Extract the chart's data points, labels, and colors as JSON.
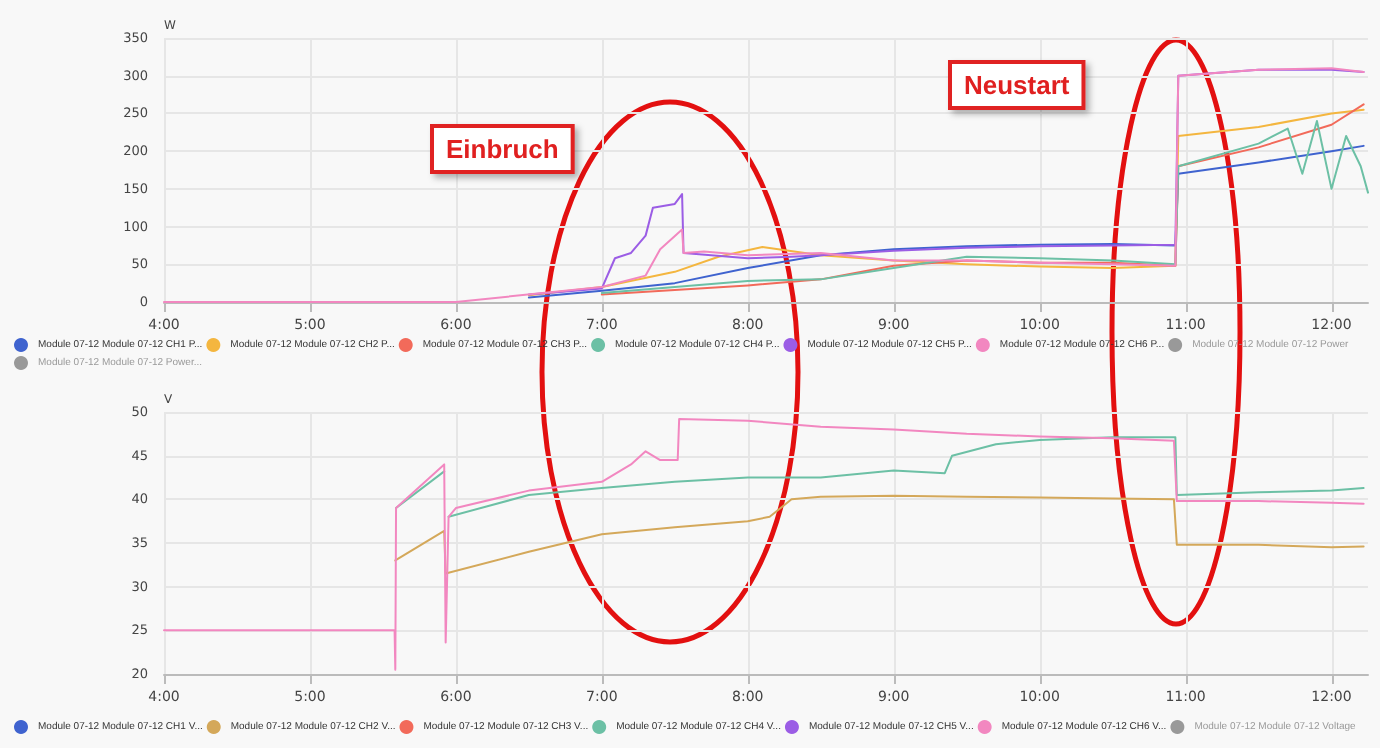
{
  "chart_data": [
    {
      "type": "line",
      "ylabel": "W",
      "annotations": [
        "Einbruch",
        "Neustart"
      ],
      "xlim": [
        4,
        12.25
      ],
      "xticks": [
        {
          "value": 4,
          "label": "4:00"
        },
        {
          "value": 5,
          "label": "5:00"
        },
        {
          "value": 6,
          "label": "6:00"
        },
        {
          "value": 7,
          "label": "7:00"
        },
        {
          "value": 8,
          "label": "8:00"
        },
        {
          "value": 9,
          "label": "9:00"
        },
        {
          "value": 10,
          "label": "10:00"
        },
        {
          "value": 11,
          "label": "11:00"
        },
        {
          "value": 12,
          "label": "12:00"
        }
      ],
      "ylim": [
        0,
        350
      ],
      "yticks": [
        0,
        50,
        100,
        150,
        200,
        250,
        300,
        350
      ],
      "grid": true,
      "legend": "bottom",
      "marker": "none",
      "line_style": "solid",
      "series": [
        {
          "name": "Module 07-12 Module 07-12 CH1 P...",
          "color": "#3f63cf",
          "x": [
            6.5,
            7,
            7.5,
            8,
            8.5,
            9,
            9.5,
            10,
            10.5,
            10.93,
            10.95,
            11.5,
            12,
            12.22
          ],
          "values": [
            6,
            15,
            25,
            45,
            62,
            70,
            74,
            76,
            77,
            75,
            170,
            185,
            200,
            207
          ]
        },
        {
          "name": "Module 07-12 Module 07-12 CH2 P...",
          "color": "#f4b63f",
          "x": [
            6.5,
            7,
            7.5,
            7.8,
            8.1,
            8.5,
            9,
            9.5,
            10,
            10.5,
            10.93,
            10.95,
            11.5,
            12,
            12.22
          ],
          "values": [
            9,
            20,
            40,
            60,
            73,
            62,
            55,
            50,
            47,
            45,
            48,
            220,
            232,
            250,
            255
          ]
        },
        {
          "name": "Module 07-12 Module 07-12 CH3 P...",
          "color": "#f26a5a",
          "x": [
            7,
            8,
            8.5,
            9,
            9.5,
            10,
            10.5,
            10.93,
            10.95,
            11.5,
            12,
            12.22
          ],
          "values": [
            10,
            22,
            30,
            48,
            55,
            52,
            52,
            48,
            180,
            205,
            235,
            262
          ]
        },
        {
          "name": "Module 07-12 Module 07-12 CH4 P...",
          "color": "#6cc0a5",
          "x": [
            7,
            8,
            8.5,
            9,
            9.5,
            10,
            10.5,
            10.93,
            10.95,
            11.5,
            11.7,
            11.8,
            11.9,
            12,
            12.1,
            12.2,
            12.25
          ],
          "values": [
            12,
            28,
            30,
            45,
            60,
            58,
            55,
            50,
            180,
            210,
            230,
            170,
            240,
            150,
            220,
            180,
            145
          ]
        },
        {
          "name": "Module 07-12 Module 07-12 CH5 P...",
          "color": "#9b5de5",
          "x": [
            6.5,
            7,
            7.09,
            7.2,
            7.3,
            7.35,
            7.5,
            7.55,
            7.56,
            8,
            8.3,
            8.5,
            9,
            9.5,
            10,
            10.5,
            10.93,
            10.95,
            11.5,
            12,
            12.22
          ],
          "values": [
            10,
            18,
            58,
            65,
            88,
            125,
            130,
            143,
            65,
            58,
            60,
            62,
            68,
            72,
            74,
            75,
            76,
            300,
            308,
            308,
            305
          ]
        },
        {
          "name": "Module 07-12 Module 07-12 CH6 P...",
          "color": "#f287c0",
          "x": [
            4,
            6,
            7,
            7.3,
            7.4,
            7.55,
            7.56,
            7.7,
            8,
            8.5,
            9,
            9.5,
            10,
            10.5,
            10.93,
            10.95,
            11.5,
            12,
            12.22
          ],
          "values": [
            0,
            0,
            20,
            35,
            70,
            96,
            65,
            67,
            62,
            65,
            55,
            55,
            52,
            50,
            48,
            300,
            308,
            310,
            305
          ]
        },
        {
          "name": "Module 07-12 Module 07-12 Power",
          "color": "#999999"
        },
        {
          "name": "Module 07-12 Module 07-12 Power...",
          "color": "#999999"
        }
      ]
    },
    {
      "type": "line",
      "ylabel": "V",
      "xlim": [
        4,
        12.25
      ],
      "xticks": [
        {
          "value": 4,
          "label": "4:00"
        },
        {
          "value": 5,
          "label": "5:00"
        },
        {
          "value": 6,
          "label": "6:00"
        },
        {
          "value": 7,
          "label": "7:00"
        },
        {
          "value": 8,
          "label": "8:00"
        },
        {
          "value": 9,
          "label": "9:00"
        },
        {
          "value": 10,
          "label": "10:00"
        },
        {
          "value": 11,
          "label": "11:00"
        },
        {
          "value": 12,
          "label": "12:00"
        }
      ],
      "ylim": [
        20,
        50
      ],
      "yticks": [
        20,
        25,
        30,
        35,
        40,
        45,
        50
      ],
      "grid": true,
      "legend": "bottom",
      "marker": "none",
      "line_style": "solid",
      "series": [
        {
          "name": "Module 07-12 Module 07-12 CH1 V...",
          "color": "#3f63cf"
        },
        {
          "name": "Module 07-12 Module 07-12 CH2 V...",
          "color": "#d4a85a",
          "x": [
            5.585,
            5.92,
            5.93,
            6.5,
            7,
            7.5,
            8,
            8.15,
            8.3,
            8.5,
            9,
            9.5,
            10,
            10.5,
            10.92,
            10.94,
            11.5,
            12,
            12.22
          ],
          "values": [
            33,
            36.4,
            31.5,
            34,
            36,
            36.8,
            37.5,
            38,
            40,
            40.3,
            40.4,
            40.3,
            40.2,
            40.1,
            40,
            34.8,
            34.8,
            34.5,
            34.6
          ]
        },
        {
          "name": "Module 07-12 Module 07-12 CH3 V...",
          "color": "#f26a5a"
        },
        {
          "name": "Module 07-12 Module 07-12 CH4 V...",
          "color": "#6cc0a5",
          "x": [
            5.59,
            5.92,
            5.93,
            5.95,
            6.5,
            7,
            7.5,
            8,
            8.5,
            9,
            9.35,
            9.4,
            9.7,
            10,
            10.5,
            10.93,
            10.94,
            11.5,
            12,
            12.22
          ],
          "values": [
            39,
            43.2,
            null,
            38,
            40.5,
            41.3,
            42,
            42.5,
            42.5,
            43.3,
            43,
            45,
            46.3,
            46.8,
            47.1,
            47.1,
            40.5,
            40.8,
            41,
            41.3
          ]
        },
        {
          "name": "Module 07-12 Module 07-12 CH5 V...",
          "color": "#9b5de5"
        },
        {
          "name": "Module 07-12 Module 07-12 CH6 V...",
          "color": "#f287c0",
          "x": [
            4,
            5.58,
            5.585,
            5.59,
            5.92,
            5.93,
            5.95,
            6,
            6.5,
            7,
            7.2,
            7.3,
            7.4,
            7.52,
            7.53,
            8,
            8.5,
            9,
            9.5,
            10,
            10.5,
            10.92,
            10.94,
            11.5,
            12,
            12.22
          ],
          "values": [
            25,
            25,
            20.5,
            39,
            44,
            23.6,
            38,
            39,
            41,
            42,
            44,
            45.5,
            44.5,
            44.5,
            49.2,
            49,
            48.3,
            48,
            47.5,
            47.2,
            47,
            46.7,
            39.8,
            39.8,
            39.6,
            39.5
          ]
        },
        {
          "name": "Module 07-12 Module 07-12 Voltage",
          "color": "#999999"
        }
      ]
    }
  ]
}
